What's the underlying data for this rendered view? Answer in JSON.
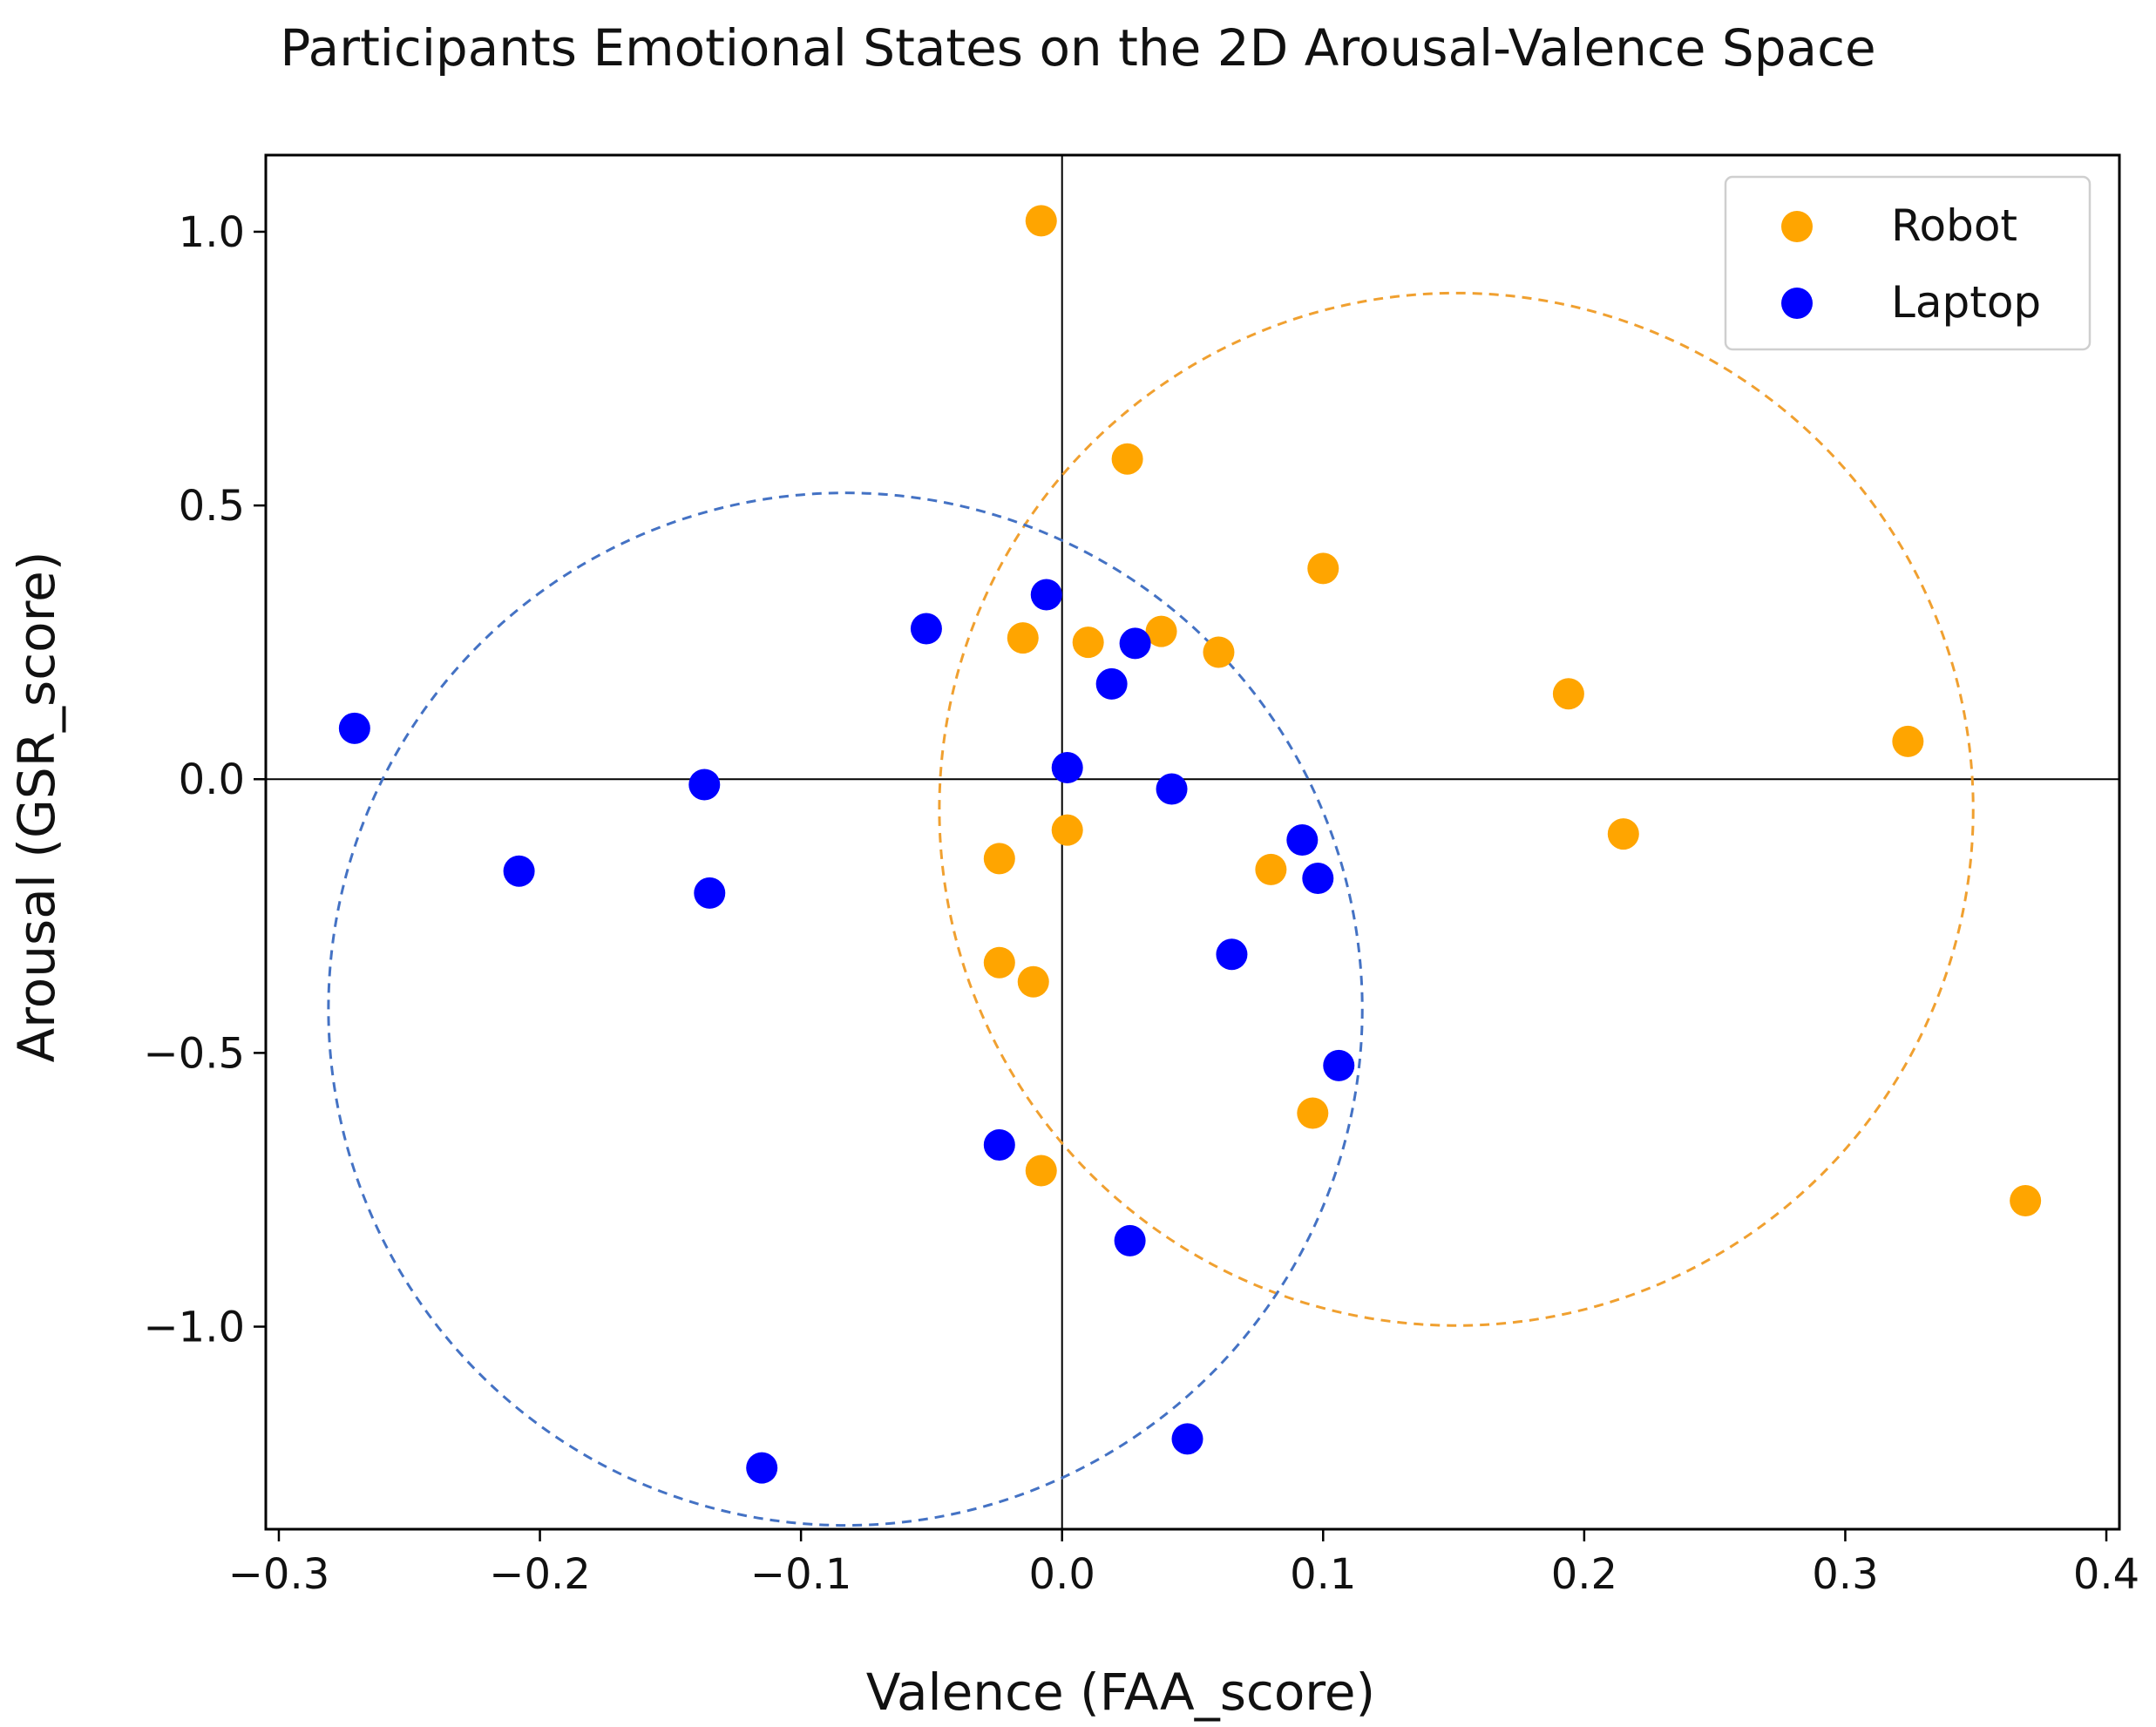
{
  "chart_data": {
    "type": "scatter",
    "title": "Participants Emotional States on the 2D Arousal-Valence Space",
    "xlabel": "Valence (FAA_score)",
    "ylabel": "Arousal (GSR_score)",
    "xlim": [
      -0.305,
      0.405
    ],
    "ylim": [
      -1.37,
      1.14
    ],
    "xticks": [
      -0.3,
      -0.2,
      -0.1,
      0.0,
      0.1,
      0.2,
      0.3,
      0.4
    ],
    "xtick_labels": [
      "−0.3",
      "−0.2",
      "−0.1",
      "0.0",
      "0.1",
      "0.2",
      "0.3",
      "0.4"
    ],
    "yticks": [
      1.0,
      0.5,
      0.0,
      -0.5,
      -1.0
    ],
    "ytick_labels": [
      "1.0",
      "0.5",
      "0.0",
      "−0.5",
      "−1.0"
    ],
    "grid": false,
    "legend_position": "top-right",
    "reference_lines": {
      "x": 0.0,
      "y": 0.0
    },
    "series": [
      {
        "name": "Robot",
        "color": "#FFA500",
        "points": [
          [
            -0.008,
            1.02
          ],
          [
            0.025,
            0.585
          ],
          [
            0.1,
            0.385
          ],
          [
            0.038,
            0.27
          ],
          [
            -0.015,
            0.258
          ],
          [
            0.01,
            0.25
          ],
          [
            0.06,
            0.232
          ],
          [
            0.194,
            0.156
          ],
          [
            0.324,
            0.069
          ],
          [
            0.002,
            -0.093
          ],
          [
            0.215,
            -0.1
          ],
          [
            -0.024,
            -0.145
          ],
          [
            0.08,
            -0.165
          ],
          [
            -0.024,
            -0.335
          ],
          [
            -0.011,
            -0.37
          ],
          [
            0.096,
            -0.61
          ],
          [
            -0.008,
            -0.715
          ],
          [
            0.369,
            -0.77
          ]
        ]
      },
      {
        "name": "Laptop",
        "color": "#0000FF",
        "points": [
          [
            -0.006,
            0.337
          ],
          [
            -0.052,
            0.275
          ],
          [
            0.028,
            0.248
          ],
          [
            0.019,
            0.174
          ],
          [
            -0.271,
            0.093
          ],
          [
            0.002,
            0.021
          ],
          [
            -0.137,
            -0.01
          ],
          [
            0.042,
            -0.018
          ],
          [
            0.092,
            -0.111
          ],
          [
            -0.208,
            -0.168
          ],
          [
            0.098,
            -0.181
          ],
          [
            -0.135,
            -0.208
          ],
          [
            0.065,
            -0.32
          ],
          [
            0.106,
            -0.523
          ],
          [
            -0.024,
            -0.668
          ],
          [
            0.026,
            -0.843
          ],
          [
            -0.115,
            -1.258
          ],
          [
            0.048,
            -1.205
          ]
        ]
      }
    ],
    "circles": [
      {
        "name": "Robot",
        "center": [
          0.151,
          -0.055
        ],
        "radius_x": 0.198,
        "radius_y": 0.943,
        "color": "#F0A030",
        "style": "dashed"
      },
      {
        "name": "Laptop",
        "center": [
          -0.083,
          -0.42
        ],
        "radius_x": 0.198,
        "radius_y": 0.943,
        "color": "#4472C4",
        "style": "dashed"
      }
    ]
  }
}
